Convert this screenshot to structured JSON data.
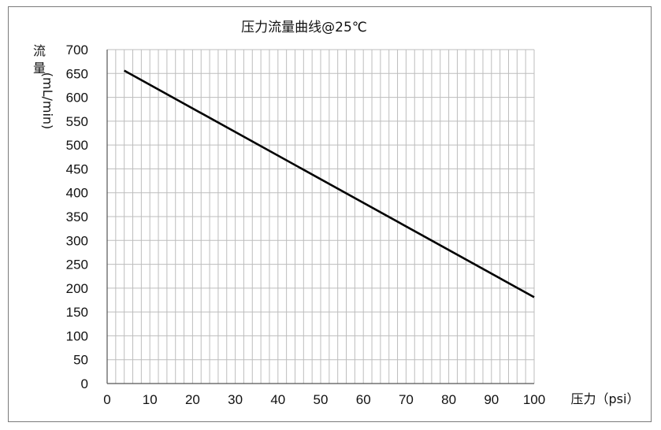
{
  "chart_data": {
    "type": "line",
    "title": "压力流量曲线@25℃",
    "xlabel": "压力（psi）",
    "ylabel_chars": [
      "流",
      "量"
    ],
    "ylabel_unit": "(mL/min)",
    "xlim": [
      0,
      100
    ],
    "ylim": [
      0,
      700
    ],
    "x_ticks": [
      0,
      10,
      20,
      30,
      40,
      50,
      60,
      70,
      80,
      90,
      100
    ],
    "y_ticks": [
      0,
      50,
      100,
      150,
      200,
      250,
      300,
      350,
      400,
      450,
      500,
      550,
      600,
      650,
      700
    ],
    "x_minor_step": 2,
    "y_minor_step": 50,
    "grid": true,
    "colors": {
      "line": "#000000",
      "grid": "#bdbdbd",
      "axis": "#555555"
    },
    "series": [
      {
        "x": [
          4,
          100
        ],
        "y": [
          656,
          181
        ]
      }
    ]
  }
}
